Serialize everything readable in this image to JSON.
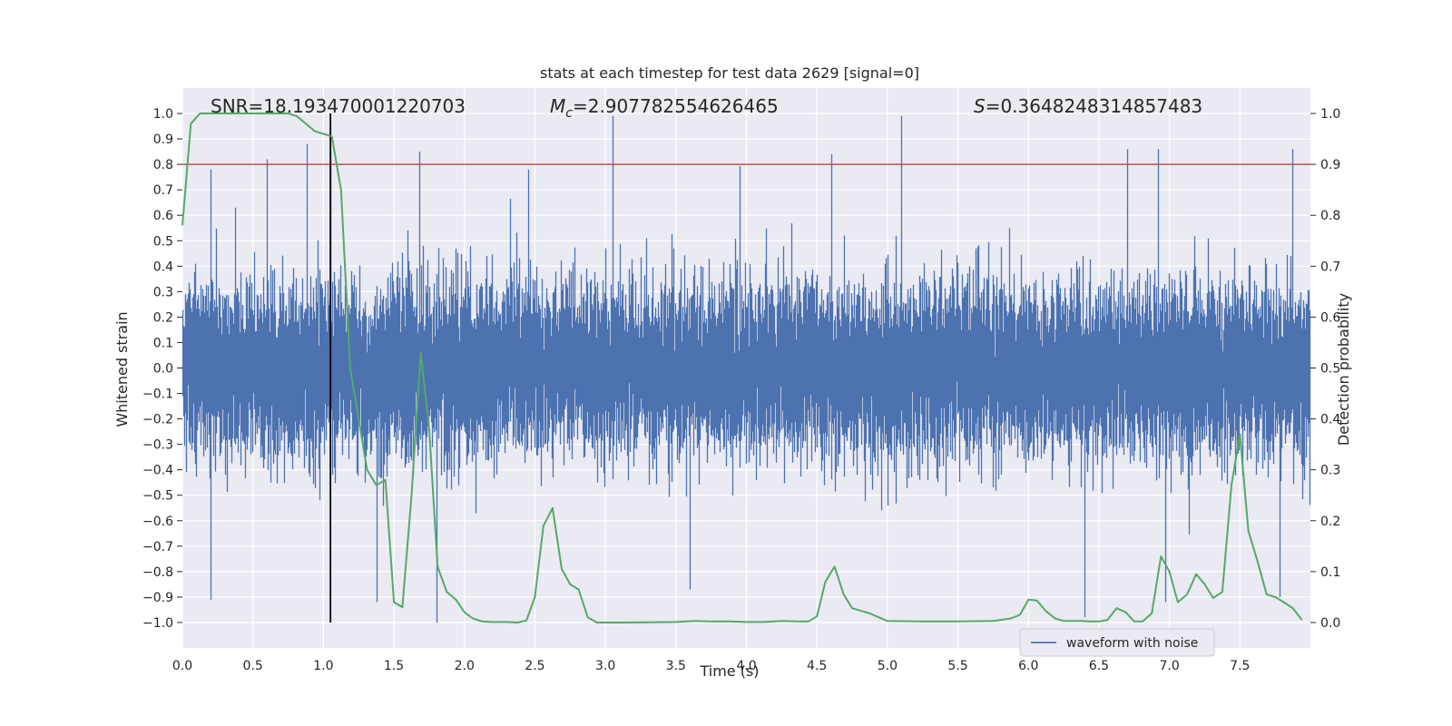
{
  "chart_data": {
    "type": "line",
    "title": "stats at each timestep for test data 2629 [signal=0]",
    "xlabel": "Time (s)",
    "ylabel": "Whitened strain",
    "y2label": "Detection probability",
    "xlim": [
      0.0,
      8.0
    ],
    "ylim": [
      -1.1,
      1.1
    ],
    "y2lim": [
      -0.05,
      1.05
    ],
    "xticks": [
      "0.0",
      "0.5",
      "1.0",
      "1.5",
      "2.0",
      "2.5",
      "3.0",
      "3.5",
      "4.0",
      "4.5",
      "5.0",
      "5.5",
      "6.0",
      "6.5",
      "7.0",
      "7.5"
    ],
    "yticks": [
      "1.0",
      "0.9",
      "0.8",
      "0.7",
      "0.6",
      "0.5",
      "0.4",
      "0.3",
      "0.2",
      "0.1",
      "0.0",
      "-0.1",
      "-0.2",
      "-0.3",
      "-0.4",
      "-0.5",
      "-0.6",
      "-0.7",
      "-0.8",
      "-0.9",
      "-1.0"
    ],
    "y2ticks": [
      "1.0",
      "0.9",
      "0.8",
      "0.7",
      "0.6",
      "0.5",
      "0.4",
      "0.3",
      "0.2",
      "0.1",
      "0.0"
    ],
    "grid": true,
    "legend_position": "bottom-right",
    "annotations": {
      "snr": "SNR=18.193470001220703",
      "mc_symbol": "M",
      "mc_subscript": "c",
      "mc_value": "=2.907782554626465",
      "s_symbol": "S",
      "s_value": "=0.3648248314857483"
    },
    "threshold": 0.9,
    "marker_time": 1.05,
    "series": [
      {
        "name": "waveform with noise",
        "axis": "left",
        "color": "#4c72b0",
        "sample_rate": 2048,
        "seed": 2629,
        "envelope_upper_typical": 0.45,
        "envelope_lower_typical": -0.45,
        "peaks": [
          {
            "x": 0.2,
            "y": 0.78
          },
          {
            "x": 0.6,
            "y": 0.82
          },
          {
            "x": 0.88,
            "y": 0.88
          },
          {
            "x": 1.05,
            "y": 0.85
          },
          {
            "x": 1.68,
            "y": 0.85
          },
          {
            "x": 2.45,
            "y": 0.78
          },
          {
            "x": 3.05,
            "y": 0.99
          },
          {
            "x": 4.6,
            "y": 0.84
          },
          {
            "x": 5.1,
            "y": 0.99
          },
          {
            "x": 6.7,
            "y": 0.86
          },
          {
            "x": 6.92,
            "y": 0.86
          },
          {
            "x": 7.87,
            "y": 0.86
          }
        ],
        "troughs": [
          {
            "x": 0.2,
            "y": -0.91
          },
          {
            "x": 1.38,
            "y": -0.92
          },
          {
            "x": 1.8,
            "y": -1.0
          },
          {
            "x": 3.6,
            "y": -0.87
          },
          {
            "x": 6.4,
            "y": -0.98
          },
          {
            "x": 6.97,
            "y": -0.92
          },
          {
            "x": 7.78,
            "y": -0.9
          }
        ]
      },
      {
        "name": "Detection probability",
        "axis": "right",
        "color": "#55a868",
        "x": [
          0.0,
          0.06,
          0.125,
          0.19,
          0.25,
          0.31,
          0.375,
          0.44,
          0.5,
          0.56,
          0.625,
          0.69,
          0.75,
          0.81,
          0.875,
          0.94,
          1.0,
          1.06,
          1.125,
          1.19,
          1.25,
          1.31,
          1.375,
          1.44,
          1.5,
          1.56,
          1.625,
          1.69,
          1.75,
          1.81,
          1.875,
          1.94,
          2.0,
          2.06,
          2.125,
          2.19,
          2.25,
          2.31,
          2.375,
          2.44,
          2.5,
          2.56,
          2.625,
          2.69,
          2.75,
          2.81,
          2.875,
          2.94,
          3.0,
          3.06,
          3.125,
          3.5,
          3.625,
          3.75,
          3.875,
          4.0,
          4.125,
          4.25,
          4.375,
          4.44,
          4.5,
          4.56,
          4.625,
          4.69,
          4.75,
          4.875,
          5.0,
          5.25,
          5.5,
          5.75,
          5.875,
          5.94,
          6.0,
          6.06,
          6.125,
          6.19,
          6.25,
          6.31,
          6.375,
          6.44,
          6.5,
          6.56,
          6.625,
          6.69,
          6.75,
          6.81,
          6.875,
          6.94,
          7.0,
          7.06,
          7.125,
          7.19,
          7.25,
          7.31,
          7.375,
          7.44,
          7.5,
          7.56,
          7.625,
          7.69,
          7.75,
          7.81,
          7.875,
          7.94
        ],
        "y": [
          0.78,
          0.98,
          1.0,
          1.0,
          1.0,
          1.0,
          1.0,
          1.0,
          1.0,
          1.0,
          1.0,
          1.0,
          1.0,
          0.995,
          0.98,
          0.965,
          0.96,
          0.955,
          0.85,
          0.5,
          0.4,
          0.3,
          0.27,
          0.28,
          0.04,
          0.03,
          0.25,
          0.53,
          0.38,
          0.11,
          0.06,
          0.045,
          0.02,
          0.008,
          0.002,
          0.001,
          0.001,
          0.001,
          0.0,
          0.004,
          0.05,
          0.19,
          0.225,
          0.105,
          0.075,
          0.065,
          0.01,
          0.0,
          0.0,
          0.0,
          0.0,
          0.001,
          0.003,
          0.002,
          0.002,
          0.001,
          0.001,
          0.003,
          0.002,
          0.002,
          0.012,
          0.08,
          0.11,
          0.055,
          0.028,
          0.018,
          0.003,
          0.002,
          0.002,
          0.003,
          0.008,
          0.015,
          0.045,
          0.043,
          0.022,
          0.008,
          0.003,
          0.003,
          0.003,
          0.002,
          0.002,
          0.005,
          0.028,
          0.02,
          0.002,
          0.002,
          0.018,
          0.13,
          0.1,
          0.04,
          0.055,
          0.095,
          0.075,
          0.048,
          0.06,
          0.27,
          0.37,
          0.18,
          0.12,
          0.055,
          0.05,
          0.04,
          0.028,
          0.005
        ]
      }
    ]
  }
}
